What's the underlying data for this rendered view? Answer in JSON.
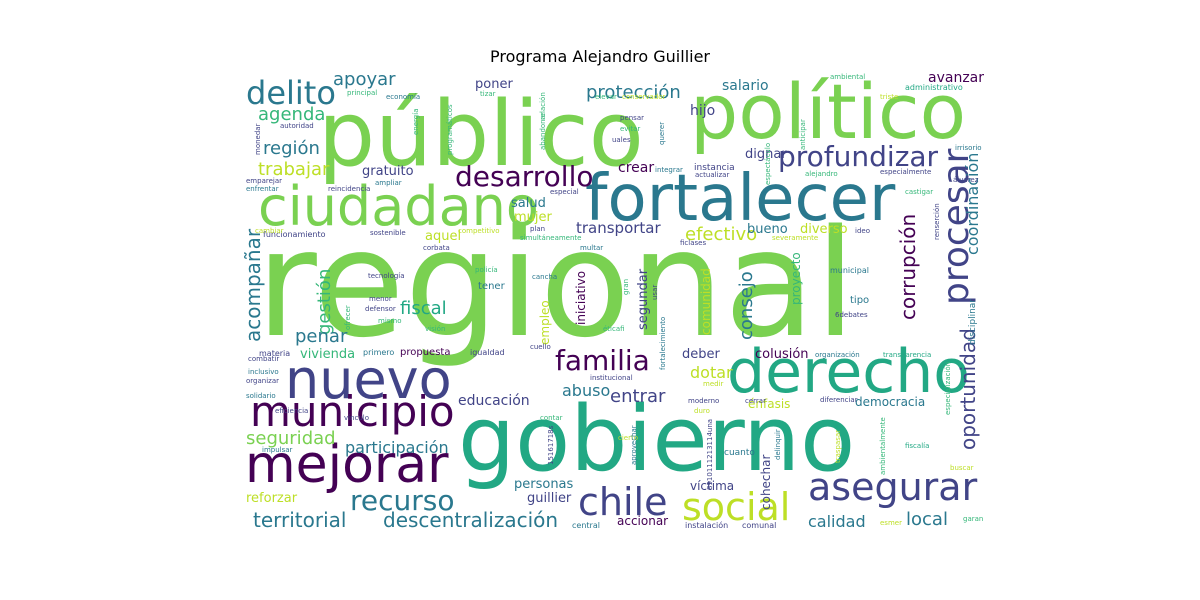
{
  "chart_data": {
    "type": "wordcloud",
    "title": "Programa Alejandro Guillier",
    "palette": [
      "#7ad151",
      "#22a884",
      "#2a788e",
      "#414487",
      "#440154",
      "#bddf26",
      "#35b779",
      "#3b528b"
    ],
    "words": [
      {
        "text": "regional",
        "weight": 1.0
      },
      {
        "text": "gobierno",
        "weight": 0.78
      },
      {
        "text": "público",
        "weight": 0.7
      },
      {
        "text": "político",
        "weight": 0.6
      },
      {
        "text": "fortalecer",
        "weight": 0.55
      },
      {
        "text": "derecho",
        "weight": 0.45
      },
      {
        "text": "nuevo",
        "weight": 0.43
      },
      {
        "text": "ciudadano",
        "weight": 0.43
      },
      {
        "text": "mejorar",
        "weight": 0.42
      },
      {
        "text": "municipio",
        "weight": 0.38
      },
      {
        "text": "asegurar",
        "weight": 0.33
      },
      {
        "text": "social",
        "weight": 0.33
      },
      {
        "text": "procesar",
        "weight": 0.3
      },
      {
        "text": "chile",
        "weight": 0.3
      },
      {
        "text": "delito",
        "weight": 0.29
      },
      {
        "text": "profundizar",
        "weight": 0.27
      },
      {
        "text": "desarrollo",
        "weight": 0.27
      },
      {
        "text": "recurso",
        "weight": 0.26
      },
      {
        "text": "familia",
        "weight": 0.25
      },
      {
        "text": "oportunidad",
        "weight": 0.22
      },
      {
        "text": "corrupción",
        "weight": 0.21
      },
      {
        "text": "territorial",
        "weight": 0.19
      },
      {
        "text": "descentralización",
        "weight": 0.19
      },
      {
        "text": "acompañar",
        "weight": 0.19
      },
      {
        "text": "seguridad",
        "weight": 0.18
      },
      {
        "text": "protección",
        "weight": 0.18
      },
      {
        "text": "agenda",
        "weight": 0.17
      },
      {
        "text": "región",
        "weight": 0.17
      },
      {
        "text": "trabajar",
        "weight": 0.17
      },
      {
        "text": "apoyar",
        "weight": 0.17
      },
      {
        "text": "consejo",
        "weight": 0.17
      },
      {
        "text": "coordinación",
        "weight": 0.17
      },
      {
        "text": "calidad",
        "weight": 0.16
      },
      {
        "text": "local",
        "weight": 0.16
      },
      {
        "text": "efectivo",
        "weight": 0.16
      },
      {
        "text": "gestión",
        "weight": 0.16
      },
      {
        "text": "fiscal",
        "weight": 0.16
      },
      {
        "text": "entrar",
        "weight": 0.16
      },
      {
        "text": "dotar",
        "weight": 0.16
      },
      {
        "text": "penar",
        "weight": 0.16
      },
      {
        "text": "participación",
        "weight": 0.15
      },
      {
        "text": "transportar",
        "weight": 0.15
      },
      {
        "text": "abuso",
        "weight": 0.15
      },
      {
        "text": "avanzar",
        "weight": 0.14
      },
      {
        "text": "hijo",
        "weight": 0.14
      },
      {
        "text": "salario",
        "weight": 0.14
      },
      {
        "text": "crear",
        "weight": 0.14
      },
      {
        "text": "vivienda",
        "weight": 0.14
      },
      {
        "text": "educación",
        "weight": 0.14
      },
      {
        "text": "guillier",
        "weight": 0.14
      },
      {
        "text": "personas",
        "weight": 0.14
      },
      {
        "text": "reforzar",
        "weight": 0.13
      },
      {
        "text": "colusión",
        "weight": 0.13
      },
      {
        "text": "deber",
        "weight": 0.13
      },
      {
        "text": "democracia",
        "weight": 0.13
      },
      {
        "text": "diverso",
        "weight": 0.13
      },
      {
        "text": "bueno",
        "weight": 0.13
      },
      {
        "text": "dignar",
        "weight": 0.13
      },
      {
        "text": "gratuito",
        "weight": 0.13
      },
      {
        "text": "aquel",
        "weight": 0.13
      },
      {
        "text": "mujer",
        "weight": 0.13
      },
      {
        "text": "salud",
        "weight": 0.13
      },
      {
        "text": "poner",
        "weight": 0.13
      },
      {
        "text": "segundar",
        "weight": 0.13
      },
      {
        "text": "comunidad",
        "weight": 0.13
      },
      {
        "text": "empleo",
        "weight": 0.13
      },
      {
        "text": "iniciativo",
        "weight": 0.12
      },
      {
        "text": "proyecto",
        "weight": 0.12
      },
      {
        "text": "víctima",
        "weight": 0.12
      },
      {
        "text": "cohechar",
        "weight": 0.12
      },
      {
        "text": "énfasis",
        "weight": 0.12
      },
      {
        "text": "accionar",
        "weight": 0.11
      },
      {
        "text": "propuesta",
        "weight": 0.1
      },
      {
        "text": "tipo",
        "weight": 0.1
      },
      {
        "text": "disciplinar",
        "weight": 0.09
      },
      {
        "text": "tener",
        "weight": 0.09
      },
      {
        "text": "instancia",
        "weight": 0.09
      },
      {
        "text": "cuanto",
        "weight": 0.09
      },
      {
        "text": "municipal",
        "weight": 0.08
      },
      {
        "text": "funcionamiento",
        "weight": 0.08
      },
      {
        "text": "materia",
        "weight": 0.08
      },
      {
        "text": "primero",
        "weight": 0.08
      },
      {
        "text": "igualdad",
        "weight": 0.08
      },
      {
        "text": "instalación",
        "weight": 0.08
      },
      {
        "text": "comunal",
        "weight": 0.08
      },
      {
        "text": "central",
        "weight": 0.08
      },
      {
        "text": "principal",
        "weight": 0.07
      },
      {
        "text": "economía",
        "weight": 0.07
      },
      {
        "text": "autoridad",
        "weight": 0.07
      },
      {
        "text": "administrativo",
        "weight": 0.07
      },
      {
        "text": "especialmente",
        "weight": 0.07
      },
      {
        "text": "integrar",
        "weight": 0.07
      },
      {
        "text": "actualizar",
        "weight": 0.07
      },
      {
        "text": "impulsar",
        "weight": 0.07
      },
      {
        "text": "organización",
        "weight": 0.07
      },
      {
        "text": "transparencia",
        "weight": 0.07
      },
      {
        "text": "institucional",
        "weight": 0.07
      },
      {
        "text": "ampliar",
        "weight": 0.07
      },
      {
        "text": "reincidencia",
        "weight": 0.07
      },
      {
        "text": "enfrentar",
        "weight": 0.07
      },
      {
        "text": "emparejar",
        "weight": 0.07
      },
      {
        "text": "cambiar",
        "weight": 0.07
      },
      {
        "text": "corbata",
        "weight": 0.07
      },
      {
        "text": "sostenible",
        "weight": 0.07
      },
      {
        "text": "competitivo",
        "weight": 0.07
      },
      {
        "text": "plan",
        "weight": 0.07
      },
      {
        "text": "simultáneamente",
        "weight": 0.07
      },
      {
        "text": "multar",
        "weight": 0.07
      },
      {
        "text": "ficlases",
        "weight": 0.07
      },
      {
        "text": "severamente",
        "weight": 0.07
      },
      {
        "text": "ideo",
        "weight": 0.07
      },
      {
        "text": "tecnología",
        "weight": 0.07
      },
      {
        "text": "policía",
        "weight": 0.07
      },
      {
        "text": "cancha",
        "weight": 0.07
      },
      {
        "text": "menor",
        "weight": 0.06
      },
      {
        "text": "defensor",
        "weight": 0.06
      },
      {
        "text": "mismo",
        "weight": 0.06
      },
      {
        "text": "visión",
        "weight": 0.06
      },
      {
        "text": "cuello",
        "weight": 0.06
      },
      {
        "text": "6debates",
        "weight": 0.06
      },
      {
        "text": "combatir",
        "weight": 0.06
      },
      {
        "text": "inclusivo",
        "weight": 0.06
      },
      {
        "text": "organizar",
        "weight": 0.06
      },
      {
        "text": "solidario",
        "weight": 0.06
      },
      {
        "text": "eficiencia",
        "weight": 0.06
      },
      {
        "text": "vínculo",
        "weight": 0.06
      },
      {
        "text": "contar",
        "weight": 0.06
      },
      {
        "text": "medir",
        "weight": 0.06
      },
      {
        "text": "moderno",
        "weight": 0.06
      },
      {
        "text": "duro",
        "weight": 0.06
      },
      {
        "text": "cerrar",
        "weight": 0.06
      },
      {
        "text": "diferenciar",
        "weight": 0.06
      },
      {
        "text": "cierto",
        "weight": 0.06
      },
      {
        "text": "fiscalía",
        "weight": 0.06
      },
      {
        "text": "buscar",
        "weight": 0.06
      },
      {
        "text": "esmer",
        "weight": 0.06
      },
      {
        "text": "garan",
        "weight": 0.06
      },
      {
        "text": "álvarez",
        "weight": 0.06
      },
      {
        "text": "castigar",
        "weight": 0.06
      },
      {
        "text": "alejandro",
        "weight": 0.06
      },
      {
        "text": "irrisorio",
        "weight": 0.06
      },
      {
        "text": "ambiental",
        "weight": 0.06
      },
      {
        "text": "triste",
        "weight": 0.06
      },
      {
        "text": "anticipar",
        "weight": 0.06
      },
      {
        "text": "elevar",
        "weight": 0.06
      },
      {
        "text": "conservador",
        "weight": 0.06
      },
      {
        "text": "tizar",
        "weight": 0.06
      },
      {
        "text": "relación",
        "weight": 0.06
      },
      {
        "text": "pensar",
        "weight": 0.06
      },
      {
        "text": "evitar",
        "weight": 0.06
      },
      {
        "text": "uales",
        "weight": 0.06
      },
      {
        "text": "querer",
        "weight": 0.06
      },
      {
        "text": "espectáculo",
        "weight": 0.06
      },
      {
        "text": "especial",
        "weight": 0.06
      },
      {
        "text": "abandonar",
        "weight": 0.06
      },
      {
        "text": "programáticos",
        "weight": 0.06
      },
      {
        "text": "energía",
        "weight": 0.06
      },
      {
        "text": "monedar",
        "weight": 0.06
      },
      {
        "text": "renserción",
        "weight": 0.06
      },
      {
        "text": "éticafi",
        "weight": 0.06
      },
      {
        "text": "fortalecimiento",
        "weight": 0.06
      },
      {
        "text": "usar",
        "weight": 0.06
      },
      {
        "text": "gran",
        "weight": 0.06
      },
      {
        "text": "ofrecer",
        "weight": 0.06
      },
      {
        "text": "aprovechar",
        "weight": 0.06
      },
      {
        "text": "delinquir",
        "weight": 0.06
      },
      {
        "text": "traspasar",
        "weight": 0.06
      },
      {
        "text": "ambientalmente",
        "weight": 0.06
      },
      {
        "text": "especialización",
        "weight": 0.06
      },
      {
        "text": "15161718s",
        "weight": 0.06
      },
      {
        "text": "8910111213114una",
        "weight": 0.06
      }
    ]
  }
}
